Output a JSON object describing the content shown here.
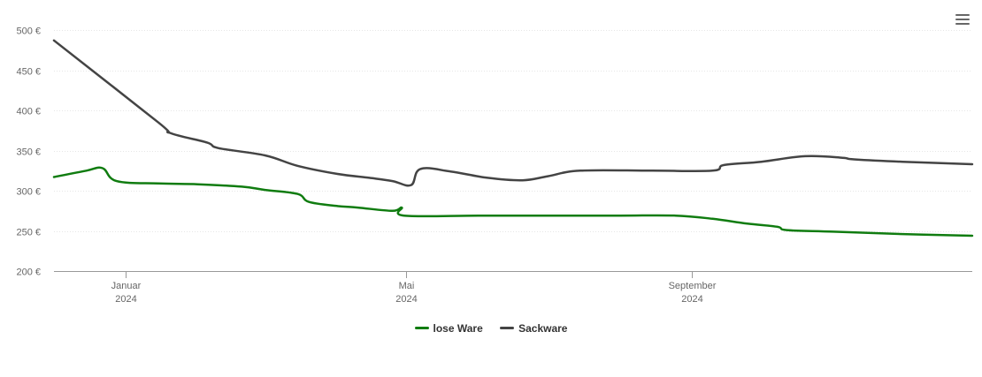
{
  "chart_data": {
    "type": "line",
    "title": "",
    "xlabel": "",
    "ylabel": "",
    "y_unit": "€",
    "ylim": [
      200,
      500
    ],
    "xlim": [
      "2023-12-01",
      "2024-12-31"
    ],
    "grid": true,
    "legend_position": "bottom-center",
    "y_ticks": [
      {
        "value": 200,
        "label": "200 €"
      },
      {
        "value": 250,
        "label": "250 €"
      },
      {
        "value": 300,
        "label": "300 €"
      },
      {
        "value": 350,
        "label": "350 €"
      },
      {
        "value": 400,
        "label": "400 €"
      },
      {
        "value": 450,
        "label": "450 €"
      },
      {
        "value": 500,
        "label": "500 €"
      }
    ],
    "x_ticks": [
      {
        "date": "2024-01-01",
        "month": "Januar",
        "year": "2024"
      },
      {
        "date": "2024-05-01",
        "month": "Mai",
        "year": "2024"
      },
      {
        "date": "2024-09-01",
        "month": "September",
        "year": "2024"
      }
    ],
    "series": [
      {
        "name": "lose Ware",
        "color": "#107c10",
        "points": [
          {
            "x": "2023-12-01",
            "y": 317
          },
          {
            "x": "2023-12-15",
            "y": 325
          },
          {
            "x": "2023-12-22",
            "y": 328
          },
          {
            "x": "2023-12-28",
            "y": 312
          },
          {
            "x": "2024-01-15",
            "y": 309
          },
          {
            "x": "2024-02-01",
            "y": 308
          },
          {
            "x": "2024-02-20",
            "y": 305
          },
          {
            "x": "2024-03-01",
            "y": 301
          },
          {
            "x": "2024-03-15",
            "y": 296
          },
          {
            "x": "2024-03-20",
            "y": 286
          },
          {
            "x": "2024-04-01",
            "y": 281
          },
          {
            "x": "2024-04-10",
            "y": 279
          },
          {
            "x": "2024-04-25",
            "y": 275
          },
          {
            "x": "2024-04-29",
            "y": 279
          },
          {
            "x": "2024-04-30",
            "y": 269
          },
          {
            "x": "2024-06-01",
            "y": 269
          },
          {
            "x": "2024-07-01",
            "y": 269
          },
          {
            "x": "2024-08-01",
            "y": 269
          },
          {
            "x": "2024-08-25",
            "y": 269
          },
          {
            "x": "2024-09-10",
            "y": 265
          },
          {
            "x": "2024-09-25",
            "y": 259
          },
          {
            "x": "2024-10-08",
            "y": 255
          },
          {
            "x": "2024-10-12",
            "y": 251
          },
          {
            "x": "2024-11-01",
            "y": 249
          },
          {
            "x": "2024-12-01",
            "y": 246
          },
          {
            "x": "2024-12-31",
            "y": 244
          }
        ]
      },
      {
        "name": "Sackware",
        "color": "#444444",
        "points": [
          {
            "x": "2023-12-01",
            "y": 487
          },
          {
            "x": "2024-01-15",
            "y": 385
          },
          {
            "x": "2024-01-20",
            "y": 372
          },
          {
            "x": "2024-02-05",
            "y": 360
          },
          {
            "x": "2024-02-10",
            "y": 353
          },
          {
            "x": "2024-03-01",
            "y": 344
          },
          {
            "x": "2024-03-15",
            "y": 331
          },
          {
            "x": "2024-04-01",
            "y": 321
          },
          {
            "x": "2024-04-15",
            "y": 316
          },
          {
            "x": "2024-04-25",
            "y": 312
          },
          {
            "x": "2024-05-03",
            "y": 307
          },
          {
            "x": "2024-05-07",
            "y": 327
          },
          {
            "x": "2024-05-20",
            "y": 324
          },
          {
            "x": "2024-06-05",
            "y": 316
          },
          {
            "x": "2024-06-20",
            "y": 313
          },
          {
            "x": "2024-07-01",
            "y": 318
          },
          {
            "x": "2024-07-15",
            "y": 325
          },
          {
            "x": "2024-08-15",
            "y": 325
          },
          {
            "x": "2024-09-10",
            "y": 325
          },
          {
            "x": "2024-09-15",
            "y": 332
          },
          {
            "x": "2024-10-01",
            "y": 336
          },
          {
            "x": "2024-10-20",
            "y": 343
          },
          {
            "x": "2024-11-05",
            "y": 341
          },
          {
            "x": "2024-11-10",
            "y": 339
          },
          {
            "x": "2024-12-01",
            "y": 336
          },
          {
            "x": "2024-12-31",
            "y": 333
          }
        ]
      }
    ]
  },
  "menu": {
    "icon": "hamburger-menu-icon"
  },
  "legend": {
    "items": [
      {
        "label": "lose Ware",
        "color": "#107c10"
      },
      {
        "label": "Sackware",
        "color": "#444444"
      }
    ]
  }
}
